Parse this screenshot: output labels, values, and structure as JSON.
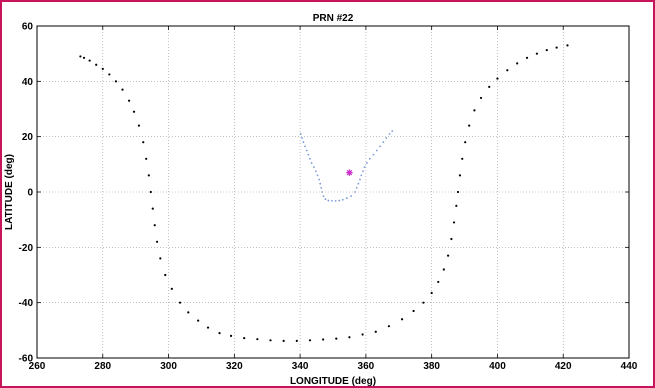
{
  "chart_data": {
    "type": "scatter",
    "title": "PRN #22",
    "xlabel": "LONGITUDE (deg)",
    "ylabel": "LATITUDE (deg)",
    "xlim": [
      260,
      440
    ],
    "ylim": [
      -60,
      60
    ],
    "xticks": [
      "260",
      "280",
      "300",
      "320",
      "340",
      "360",
      "380",
      "400",
      "420",
      "440"
    ],
    "yticks": [
      "60",
      "40",
      "20",
      "0",
      "-20",
      "-40",
      "-60"
    ],
    "grid": true,
    "series": [
      {
        "color": "#000000",
        "marker": "dot",
        "points": [
          [
            273.2,
            49
          ],
          [
            274.3,
            48.5
          ],
          [
            276,
            47.5
          ],
          [
            278,
            46
          ],
          [
            280,
            44.5
          ],
          [
            282,
            42.5
          ],
          [
            284,
            40
          ],
          [
            286,
            37
          ],
          [
            288,
            33
          ],
          [
            289.5,
            29
          ],
          [
            291,
            24
          ],
          [
            292.3,
            18
          ],
          [
            293.2,
            12
          ],
          [
            294,
            6
          ],
          [
            294.6,
            0
          ],
          [
            295.2,
            -6
          ],
          [
            295.8,
            -12
          ],
          [
            296.5,
            -18
          ],
          [
            297.5,
            -24
          ],
          [
            299,
            -30
          ],
          [
            301,
            -35
          ],
          [
            303.5,
            -40
          ],
          [
            306,
            -43.5
          ],
          [
            309,
            -46.5
          ],
          [
            312,
            -49
          ],
          [
            315.5,
            -51
          ],
          [
            319,
            -52
          ],
          [
            323,
            -52.8
          ],
          [
            327,
            -53.2
          ],
          [
            331,
            -53.6
          ],
          [
            335,
            -53.8
          ],
          [
            339,
            -53.8
          ],
          [
            343,
            -53.6
          ],
          [
            347,
            -53.3
          ],
          [
            351,
            -53
          ],
          [
            355,
            -52.5
          ],
          [
            359,
            -51.5
          ],
          [
            363,
            -50.5
          ],
          [
            367,
            -48.5
          ],
          [
            371,
            -46
          ],
          [
            374.5,
            -43
          ],
          [
            377.5,
            -40
          ],
          [
            380,
            -36.5
          ],
          [
            382,
            -32.5
          ],
          [
            383.7,
            -28
          ],
          [
            385,
            -23
          ],
          [
            386,
            -17
          ],
          [
            386.8,
            -11
          ],
          [
            387.5,
            -5
          ],
          [
            388,
            0
          ],
          [
            388.6,
            6
          ],
          [
            389.3,
            12
          ],
          [
            390.2,
            18
          ],
          [
            391.4,
            24
          ],
          [
            393,
            29.5
          ],
          [
            395,
            34
          ],
          [
            397.5,
            38
          ],
          [
            400,
            41
          ],
          [
            403,
            44
          ],
          [
            406,
            46.5
          ],
          [
            409,
            48.5
          ],
          [
            412,
            50
          ],
          [
            415,
            51.3
          ],
          [
            418,
            52.2
          ],
          [
            421.3,
            53
          ]
        ]
      },
      {
        "color": "#7a9ad8",
        "marker": "dot",
        "points": [
          [
            340.2,
            21
          ],
          [
            340.6,
            19.5
          ],
          [
            341,
            18
          ],
          [
            341.5,
            16.5
          ],
          [
            342,
            15
          ],
          [
            342.5,
            13.5
          ],
          [
            343,
            12
          ],
          [
            343.5,
            10.5
          ],
          [
            344.2,
            9
          ],
          [
            344.8,
            7.5
          ],
          [
            345.3,
            6
          ],
          [
            345.8,
            4.5
          ],
          [
            346.1,
            3
          ],
          [
            346.4,
            1.5
          ],
          [
            346.7,
            0
          ],
          [
            347.1,
            -1.5
          ],
          [
            347.7,
            -2.6
          ],
          [
            348.6,
            -3.1
          ],
          [
            349.7,
            -3.2
          ],
          [
            350.8,
            -3.2
          ],
          [
            351.9,
            -3.1
          ],
          [
            353,
            -2.8
          ],
          [
            354.2,
            -2.2
          ],
          [
            355.5,
            -1.5
          ],
          [
            356.7,
            0
          ],
          [
            357.2,
            1.5
          ],
          [
            357.7,
            3
          ],
          [
            358.2,
            4.5
          ],
          [
            358.6,
            6
          ],
          [
            359.1,
            7.5
          ],
          [
            359.6,
            9
          ],
          [
            360.3,
            10.5
          ],
          [
            361.2,
            12
          ],
          [
            362.3,
            13.5
          ],
          [
            363.3,
            15
          ],
          [
            364.3,
            16.5
          ],
          [
            365.3,
            18
          ],
          [
            366.2,
            19.5
          ],
          [
            367.2,
            21
          ],
          [
            368,
            22
          ]
        ]
      },
      {
        "color": "#cc33cc",
        "marker": "asterisk",
        "points": [
          [
            355,
            7
          ]
        ]
      }
    ]
  }
}
